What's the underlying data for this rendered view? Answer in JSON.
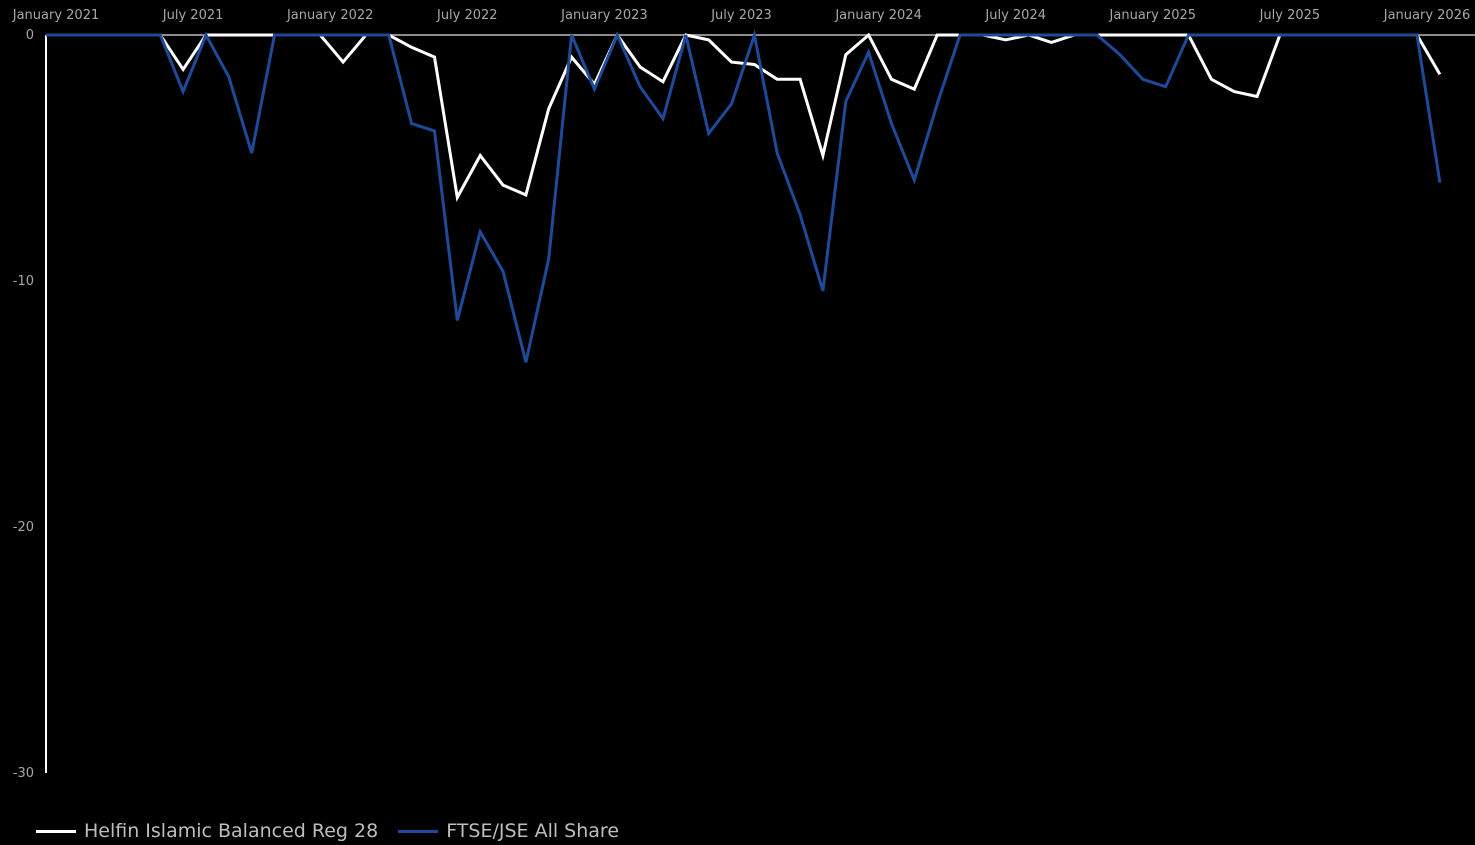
{
  "chart_data": {
    "type": "line",
    "title": "",
    "xlabel": "",
    "ylabel": "",
    "ylim": [
      -30,
      0
    ],
    "yticks": [
      0,
      -10,
      -20,
      -30
    ],
    "ytick_labels": [
      "0",
      "-10",
      "-20",
      "-30"
    ],
    "xtick_labels": [
      "January 2021",
      "July 2021",
      "January 2022",
      "July 2022",
      "January 2023",
      "July 2023",
      "January 2024",
      "July 2024",
      "January 2025",
      "July 2025",
      "January 2026"
    ],
    "grid": false,
    "legend_position": "bottom-left",
    "x": [
      "2021-01",
      "2021-02",
      "2021-03",
      "2021-04",
      "2021-05",
      "2021-06",
      "2021-07",
      "2021-08",
      "2021-09",
      "2021-10",
      "2021-11",
      "2021-12",
      "2022-01",
      "2022-02",
      "2022-03",
      "2022-04",
      "2022-05",
      "2022-06",
      "2022-07",
      "2022-08",
      "2022-09",
      "2022-10",
      "2022-11",
      "2022-12",
      "2023-01",
      "2023-02",
      "2023-03",
      "2023-04",
      "2023-05",
      "2023-06",
      "2023-07",
      "2023-08",
      "2023-09",
      "2023-10",
      "2023-11",
      "2023-12",
      "2024-01",
      "2024-02",
      "2024-03",
      "2024-04",
      "2024-05",
      "2024-06",
      "2024-07",
      "2024-08",
      "2024-09",
      "2024-10",
      "2024-11",
      "2024-12",
      "2025-01",
      "2025-02",
      "2025-03",
      "2025-04",
      "2025-05",
      "2025-06",
      "2025-07",
      "2025-08",
      "2025-09",
      "2025-10",
      "2025-11",
      "2025-12",
      "2026-01",
      "2026-02"
    ],
    "series": [
      {
        "name": "Helfin Islamic Balanced Reg 28",
        "color": "#ffffff",
        "values": [
          0,
          0,
          0,
          0,
          0,
          0,
          -1.4,
          0,
          0,
          0,
          0,
          0,
          0,
          -1.1,
          0,
          0,
          -0.5,
          -0.9,
          -6.6,
          -4.9,
          -6.1,
          -6.5,
          -3.0,
          -0.9,
          -2.0,
          0,
          -1.3,
          -1.9,
          0,
          -0.2,
          -1.1,
          -1.2,
          -1.8,
          -1.8,
          -4.9,
          -0.8,
          0,
          -1.8,
          -2.2,
          0,
          0,
          0,
          -0.2,
          0,
          -0.3,
          0,
          0,
          0,
          0,
          0,
          0,
          -1.8,
          -2.3,
          -2.5,
          0,
          0,
          0,
          0,
          0,
          0,
          0,
          -1.6
        ]
      },
      {
        "name": "FTSE/JSE All Share",
        "color": "#1e4a9a",
        "values": [
          0,
          0,
          0,
          0,
          0,
          0,
          -2.3,
          0,
          -1.7,
          -4.8,
          0,
          0,
          0,
          0,
          0,
          0,
          -3.6,
          -3.9,
          -11.6,
          -8.0,
          -9.6,
          -13.3,
          -9.1,
          0,
          -2.2,
          0,
          -2.1,
          -3.4,
          0,
          -4.0,
          -2.8,
          0,
          -4.8,
          -7.3,
          -10.4,
          -2.7,
          -0.7,
          -3.6,
          -5.9,
          -2.8,
          0,
          0,
          0,
          0,
          0,
          0,
          0,
          -0.8,
          -1.8,
          -2.1,
          0,
          0,
          0,
          0,
          0,
          0,
          0,
          0,
          0,
          0,
          0,
          -6.0
        ]
      }
    ]
  }
}
